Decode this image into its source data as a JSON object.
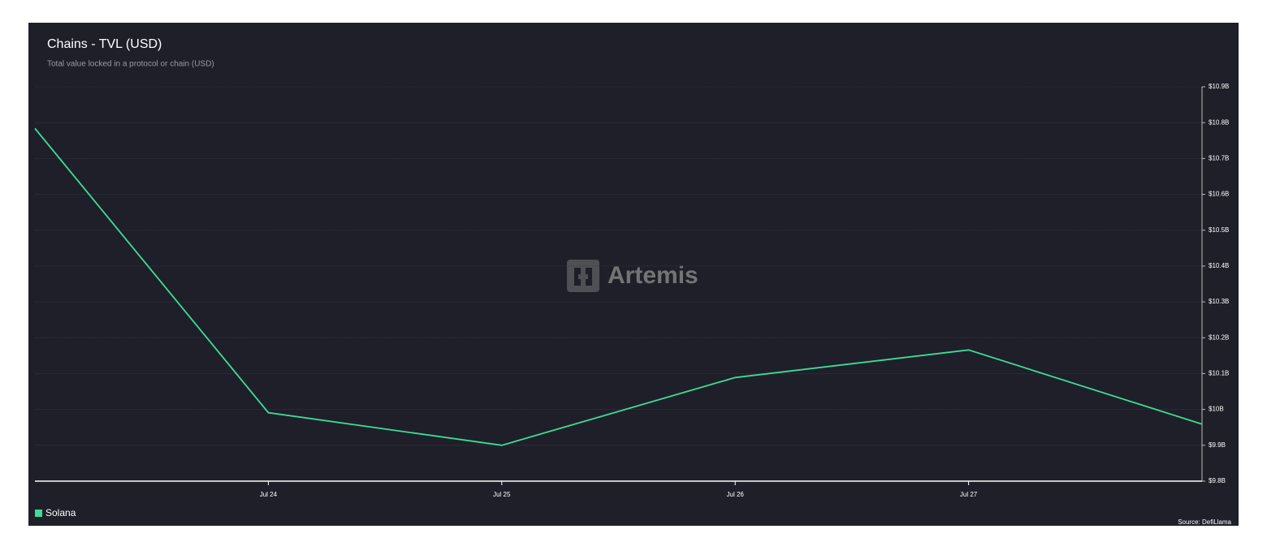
{
  "chart_data": {
    "type": "line",
    "title": "Chains - TVL (USD)",
    "subtitle": "Total value locked in a protocol or chain (USD)",
    "watermark": "Artemis",
    "source": "Source: DefiLlama",
    "categories": [
      null,
      "Jul 24",
      "Jul 25",
      "Jul 26",
      "Jul 27",
      null
    ],
    "series": [
      {
        "name": "Solana",
        "color": "#3ddc97",
        "values": [
          10784000000,
          9991000000,
          9900000000,
          10089000000,
          10166000000,
          9959000000
        ]
      }
    ],
    "ylim": [
      9800000000,
      10900000000
    ],
    "yticks": [
      {
        "value": 9800000000,
        "label": "$9.8B"
      },
      {
        "value": 9900000000,
        "label": "$9.9B"
      },
      {
        "value": 10000000000,
        "label": "$10B"
      },
      {
        "value": 10100000000,
        "label": "$10.1B"
      },
      {
        "value": 10200000000,
        "label": "$10.2B"
      },
      {
        "value": 10300000000,
        "label": "$10.3B"
      },
      {
        "value": 10400000000,
        "label": "$10.4B"
      },
      {
        "value": 10500000000,
        "label": "$10.5B"
      },
      {
        "value": 10600000000,
        "label": "$10.6B"
      },
      {
        "value": 10700000000,
        "label": "$10.7B"
      },
      {
        "value": 10800000000,
        "label": "$10.8B"
      },
      {
        "value": 10900000000,
        "label": "$10.9B"
      }
    ],
    "y_axis_side": "right",
    "grid": true
  }
}
